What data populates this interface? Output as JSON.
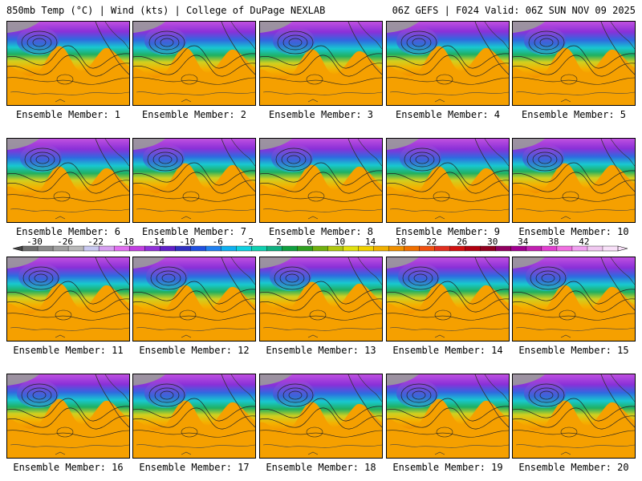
{
  "header": {
    "title_left": "850mb Temp (°C) | Wind (kts) | College of DuPage NEXLAB",
    "title_right": "06Z GEFS | F024 Valid: 06Z SUN NOV 09 2025"
  },
  "panels": [
    {
      "label": "Ensemble Member: 1"
    },
    {
      "label": "Ensemble Member: 2"
    },
    {
      "label": "Ensemble Member: 3"
    },
    {
      "label": "Ensemble Member: 4"
    },
    {
      "label": "Ensemble Member: 5"
    },
    {
      "label": "Ensemble Member: 6"
    },
    {
      "label": "Ensemble Member: 7"
    },
    {
      "label": "Ensemble Member: 8"
    },
    {
      "label": "Ensemble Member: 9"
    },
    {
      "label": "Ensemble Member: 10"
    },
    {
      "label": "Ensemble Member: 11"
    },
    {
      "label": "Ensemble Member: 12"
    },
    {
      "label": "Ensemble Member: 13"
    },
    {
      "label": "Ensemble Member: 14"
    },
    {
      "label": "Ensemble Member: 15"
    },
    {
      "label": "Ensemble Member: 16"
    },
    {
      "label": "Ensemble Member: 17"
    },
    {
      "label": "Ensemble Member: 18"
    },
    {
      "label": "Ensemble Member: 19"
    },
    {
      "label": "Ensemble Member: 20"
    }
  ],
  "colorbar": {
    "ticks": [
      "-30",
      "-26",
      "-22",
      "-18",
      "-14",
      "-10",
      "-6",
      "-2",
      "2",
      "6",
      "10",
      "14",
      "18",
      "22",
      "26",
      "30",
      "34",
      "38",
      "42"
    ],
    "colors": [
      "#6e6e6e",
      "#8a8a8a",
      "#a0a0a0",
      "#b8b8b8",
      "#c8c8f0",
      "#d6a0f0",
      "#e070f0",
      "#c040e0",
      "#9030d8",
      "#6020c8",
      "#3030c0",
      "#2050e0",
      "#2080f0",
      "#10b0f0",
      "#10d0e0",
      "#10d0b0",
      "#10b080",
      "#10a040",
      "#30a020",
      "#70b010",
      "#b0c810",
      "#e0e010",
      "#f0d000",
      "#f0b000",
      "#f09000",
      "#f07000",
      "#f05010",
      "#e03020",
      "#d01010",
      "#b00010",
      "#900020",
      "#900060",
      "#a00090",
      "#c020b0",
      "#e040d0",
      "#f070e0",
      "#f0a0f0",
      "#f0c8f0",
      "#f8e0f8"
    ]
  },
  "colors": {
    "cold": "#c050e0",
    "warm": "#f5a000"
  }
}
